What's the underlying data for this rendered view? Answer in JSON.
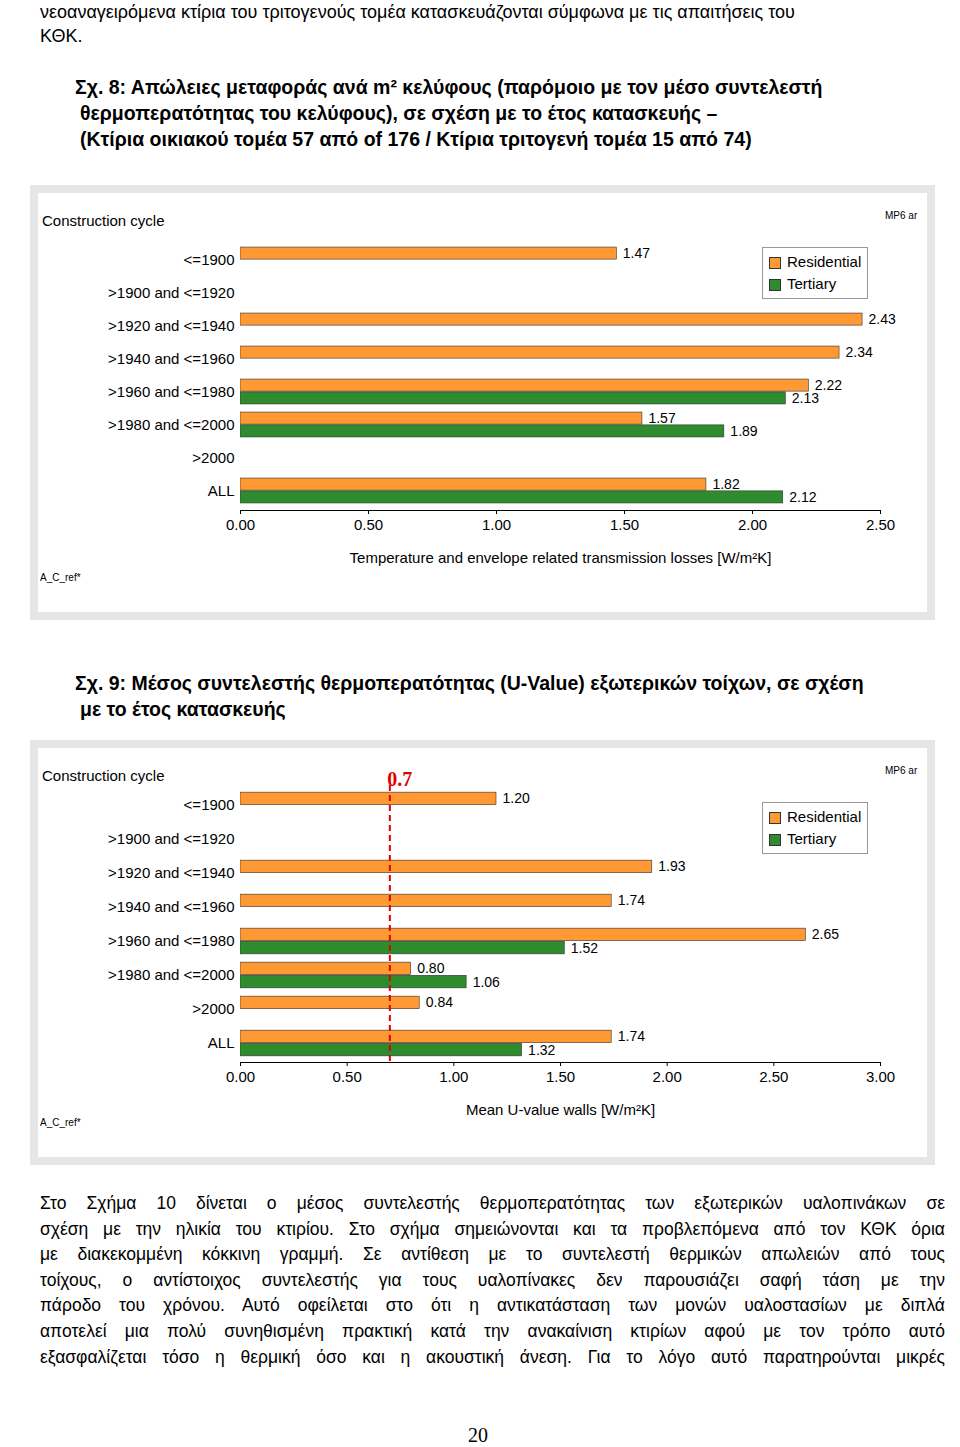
{
  "header": {
    "lines": [
      "νεοαναγειρόμενα κτίρια του τριτογενούς τομέα κατασκευάζονται σύμφωνα με τις απαιτήσεις του",
      "ΚΘΚ."
    ]
  },
  "chart_data": [
    {
      "type": "bar",
      "orientation": "horizontal",
      "title": [
        "Σχ. 8: Απώλειες μεταφοράς ανά m² κελύφους (παρόμοιο με τον μέσο συντελεστή",
        "θερμοπερατότητας του κελύφους), σε σχέση με το έτος κατασκευής –",
        "(Κτίρια οικιακού τομέα 57 από of 176 / Κτίρια τριτογενή τομέα 15 από 74)"
      ],
      "y_label": "Construction cycle",
      "x_label": "Temperature and envelope related transmission losses [W/m²K]",
      "corner_note": "MP6 ar",
      "footnote": "A_C_ref*",
      "categories": [
        "<=1900",
        ">1900 and <=1920",
        ">1920 and <=1940",
        ">1940 and <=1960",
        ">1960 and <=1980",
        ">1980 and <=2000",
        ">2000",
        "ALL"
      ],
      "series": [
        {
          "name": "Residential",
          "color": "#ff9933",
          "values": [
            1.47,
            null,
            2.43,
            2.34,
            2.22,
            1.57,
            null,
            1.82
          ],
          "value_labels": [
            "1.47",
            null,
            "2.43",
            "2.34",
            "2.22",
            "1.57",
            null,
            "1.82"
          ]
        },
        {
          "name": "Tertiary",
          "color": "#2e8b2e",
          "values": [
            null,
            null,
            null,
            null,
            2.13,
            1.89,
            null,
            2.12
          ],
          "value_labels": [
            null,
            null,
            null,
            null,
            "2.13",
            "1.89",
            null,
            "2.12"
          ]
        }
      ],
      "xlim": [
        0,
        2.5
      ],
      "xticks": [
        {
          "value": 0,
          "label": "0.00"
        },
        {
          "value": 0.5,
          "label": "0.50"
        },
        {
          "value": 1,
          "label": "1.00"
        },
        {
          "value": 1.5,
          "label": "1.50"
        },
        {
          "value": 2,
          "label": "2.00"
        },
        {
          "value": 2.5,
          "label": "2.50"
        }
      ],
      "grid": false,
      "legend": "top-right",
      "data_labels": true
    },
    {
      "type": "bar",
      "orientation": "horizontal",
      "title": [
        "Σχ. 9: Μέσος συντελεστής θερμοπερατότητας (U-Value) εξωτερικών τοίχων, σε σχέση",
        "με το έτος κατασκευής"
      ],
      "y_label": "Construction cycle",
      "x_label": "Mean U-value walls [W/m²K]",
      "corner_note": "MP6 ar",
      "footnote": "A_C_ref*",
      "categories": [
        "<=1900",
        ">1900 and <=1920",
        ">1920 and <=1940",
        ">1940 and <=1960",
        ">1960 and <=1980",
        ">1980 and <=2000",
        ">2000",
        "ALL"
      ],
      "series": [
        {
          "name": "Residential",
          "color": "#ff9933",
          "values": [
            1.2,
            null,
            1.93,
            1.74,
            2.65,
            0.8,
            0.84,
            1.74
          ],
          "value_labels": [
            "1.20",
            null,
            "1.93",
            "1.74",
            "2.65",
            "0.80",
            "0.84",
            "1.74"
          ]
        },
        {
          "name": "Tertiary",
          "color": "#2e8b2e",
          "values": [
            null,
            null,
            null,
            null,
            1.52,
            1.06,
            null,
            1.32
          ],
          "value_labels": [
            null,
            null,
            null,
            null,
            "1.52",
            "1.06",
            null,
            "1.32"
          ]
        }
      ],
      "xlim": [
        0,
        3
      ],
      "xticks": [
        {
          "value": 0,
          "label": "0.00"
        },
        {
          "value": 0.5,
          "label": "0.50"
        },
        {
          "value": 1,
          "label": "1.00"
        },
        {
          "value": 1.5,
          "label": "1.50"
        },
        {
          "value": 2,
          "label": "2.00"
        },
        {
          "value": 2.5,
          "label": "2.50"
        },
        {
          "value": 3,
          "label": "3.00"
        }
      ],
      "reference_line": {
        "value": 0.7,
        "label": "0.7",
        "color": "#e00000",
        "line_style": "dashed"
      },
      "grid": false,
      "legend": "top-right",
      "data_labels": true
    }
  ],
  "body": {
    "lines": [
      "Στο Σχήμα 10 δίνεται ο μέσος συντελεστής θερμοπερατότητας των εξωτερικών υαλοπινάκων σε",
      "σχέση με την ηλικία του κτιρίου. Στο σχήμα σημειώνονται και τα προβλεπόμενα από τον ΚΘΚ όρια",
      "με διακεκομμένη κόκκινη γραμμή. Σε αντίθεση με το συντελεστή θερμικών απωλειών από τους",
      "τοίχους, ο αντίστοιχος συντελεστής για τους υαλοπίνακες δεν παρουσιάζει σαφή τάση με την",
      "πάροδο του χρόνου. Αυτό οφείλεται στο ότι η αντικατάσταση των μονών υαλοστασίων με διπλά",
      "αποτελεί μια πολύ συνηθισμένη πρακτική κατά την ανακαίνιση κτιρίων αφού με τον τρόπο αυτό",
      "εξασφαλίζεται τόσο η θερμική όσο και η ακουστική άνεση. Για το λόγο αυτό παρατηρούνται μικρές"
    ]
  },
  "page_number": "20"
}
